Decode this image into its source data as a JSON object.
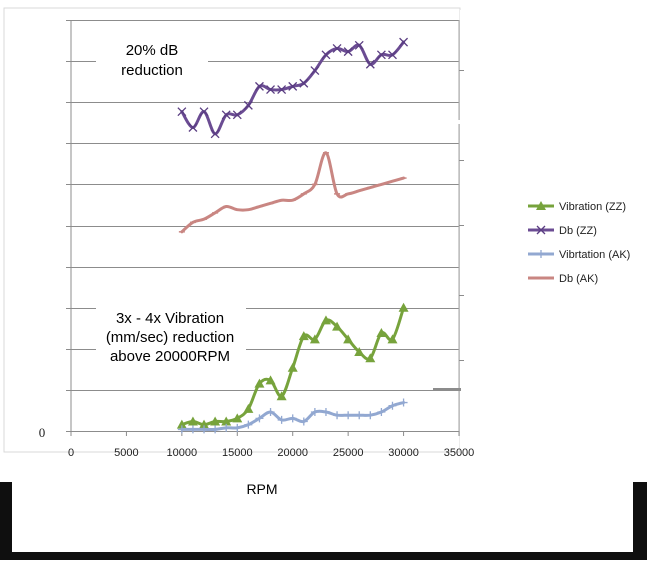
{
  "chart_data": {
    "type": "line",
    "title": "",
    "xlabel": "RPM",
    "ylabel": "",
    "xlim": [
      0,
      35000
    ],
    "x_ticks": [
      "0",
      "5000",
      "10000",
      "15000",
      "20000",
      "25000",
      "30000",
      "35000"
    ],
    "y_tick_label": "0",
    "grid": "horizontal",
    "legend_position": "right",
    "annotations": [
      {
        "lines": [
          "20% dB",
          "reduction"
        ]
      },
      {
        "lines": [
          "3x - 4x Vibration",
          "(mm/sec) reduction",
          "above 20000RPM"
        ]
      }
    ],
    "series": [
      {
        "name": "Vibration (ZZ)",
        "color": "#77a33c",
        "marker": "triangle",
        "x": [
          10000,
          11000,
          12000,
          13000,
          14000,
          15000,
          16000,
          17000,
          18000,
          19000,
          20000,
          21000,
          22000,
          23000,
          24000,
          25000,
          26000,
          27000,
          28000,
          29000,
          30000
        ],
        "y": [
          0.2,
          0.3,
          0.2,
          0.3,
          0.3,
          0.4,
          0.7,
          1.5,
          1.6,
          1.1,
          2.0,
          3.0,
          2.9,
          3.5,
          3.3,
          2.9,
          2.5,
          2.3,
          3.1,
          2.9,
          3.9
        ]
      },
      {
        "name": "Db (ZZ)",
        "color": "#6b4c93",
        "marker": "x",
        "x": [
          10000,
          11000,
          12000,
          13000,
          14000,
          15000,
          16000,
          17000,
          18000,
          19000,
          20000,
          21000,
          22000,
          23000,
          24000,
          25000,
          26000,
          27000,
          28000,
          29000,
          30000
        ],
        "y": [
          10.1,
          9.6,
          10.1,
          9.4,
          10.0,
          10.0,
          10.3,
          10.9,
          10.8,
          10.8,
          10.9,
          11.0,
          11.4,
          11.9,
          12.1,
          12.0,
          12.2,
          11.6,
          11.9,
          11.9,
          12.3
        ]
      },
      {
        "name": "Vibrtation (AK)",
        "color": "#92a8d1",
        "marker": "plus",
        "x": [
          10000,
          11000,
          12000,
          13000,
          14000,
          15000,
          16000,
          17000,
          18000,
          19000,
          20000,
          21000,
          22000,
          23000,
          24000,
          25000,
          26000,
          27000,
          28000,
          29000,
          30000
        ],
        "y": [
          0.05,
          0.05,
          0.05,
          0.05,
          0.1,
          0.1,
          0.2,
          0.4,
          0.6,
          0.35,
          0.4,
          0.3,
          0.6,
          0.6,
          0.5,
          0.5,
          0.5,
          0.5,
          0.6,
          0.8,
          0.9
        ]
      },
      {
        "name": "Db (AK)",
        "color": "#c98682",
        "marker": "dash",
        "x": [
          10000,
          11000,
          12000,
          13000,
          14000,
          15000,
          16000,
          17000,
          18000,
          19000,
          20000,
          21000,
          22000,
          23000,
          24000,
          25000,
          26000,
          27000,
          28000,
          29000,
          30000
        ],
        "y": [
          6.3,
          6.6,
          6.7,
          6.9,
          7.1,
          7.0,
          7.0,
          7.1,
          7.2,
          7.3,
          7.3,
          7.5,
          7.8,
          8.8,
          7.5,
          7.5,
          7.6,
          7.7,
          7.8,
          7.9,
          8.0
        ]
      }
    ]
  }
}
